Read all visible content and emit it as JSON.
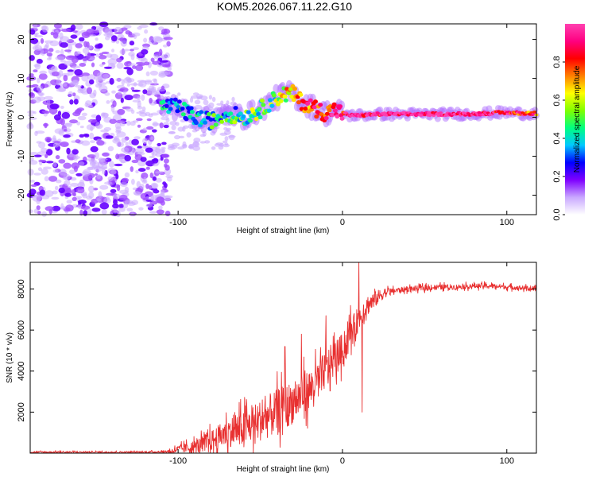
{
  "title": "KOM5.2026.067.11.22.G10",
  "chart_data": [
    {
      "type": "heatmap",
      "xlabel": "Height of straight line (km)",
      "ylabel": "Frequency (Hz)",
      "xlim": [
        -190,
        118
      ],
      "ylim": [
        -25,
        24
      ],
      "xticks": [
        -100,
        0,
        100
      ],
      "xtick_labels": [
        "-100",
        "0",
        "100"
      ],
      "yticks": [
        -20,
        -10,
        0,
        10,
        20
      ],
      "ytick_labels": [
        "-20",
        "-10",
        "0",
        "10",
        "20"
      ],
      "colorbar": {
        "label": "Normalized spectral amplitude",
        "range": [
          0,
          1
        ],
        "ticks": [
          0,
          0.2,
          0.4,
          0.6,
          0.8
        ],
        "tick_labels": [
          "0.0",
          "0.2",
          "0.4",
          "0.6",
          "0.8"
        ],
        "colors": [
          "#ffffff",
          "#c9a8ff",
          "#7f00ff",
          "#0000ff",
          "#00c8ff",
          "#00ff80",
          "#80ff00",
          "#ffff00",
          "#ff8000",
          "#ff0000",
          "#ff0080",
          "#ff40b0"
        ]
      },
      "noise_region_x": [
        -190,
        -105
      ],
      "signal_ridge": {
        "x": [
          -110,
          -100,
          -90,
          -80,
          -70,
          -60,
          -50,
          -40,
          -35,
          -30,
          -25,
          -20,
          -15,
          -10,
          -5,
          0,
          5,
          10,
          20,
          30,
          40,
          60,
          80,
          100,
          110,
          118
        ],
        "freq": [
          3,
          2.5,
          0,
          -1,
          1,
          0,
          2,
          5,
          6,
          6,
          4,
          3,
          2,
          1,
          2,
          1,
          0.5,
          0.5,
          0.8,
          0.8,
          0.8,
          0.8,
          0.9,
          1.2,
          1.0,
          1.0
        ],
        "amplitude": [
          0.3,
          0.35,
          0.35,
          0.4,
          0.4,
          0.45,
          0.5,
          0.5,
          0.6,
          0.7,
          0.75,
          0.8,
          0.85,
          0.85,
          0.9,
          0.9,
          0.95,
          0.95,
          0.95,
          1.0,
          1.0,
          1.0,
          1.0,
          0.9,
          0.85,
          0.8
        ]
      }
    },
    {
      "type": "line",
      "xlabel": "Height of straight line (km)",
      "ylabel": "SNR (10 * v/v)",
      "xlim": [
        -190,
        118
      ],
      "ylim": [
        0,
        9300
      ],
      "xticks": [
        -100,
        0,
        100
      ],
      "xtick_labels": [
        "-100",
        "0",
        "100"
      ],
      "yticks": [
        2000,
        4000,
        6000,
        8000
      ],
      "ytick_labels": [
        "2000",
        "4000",
        "6000",
        "8000"
      ],
      "color": "#e83030",
      "trend": {
        "x": [
          -190,
          -120,
          -105,
          -100,
          -90,
          -80,
          -70,
          -60,
          -50,
          -40,
          -30,
          -20,
          -15,
          -10,
          -5,
          0,
          5,
          10,
          15,
          20,
          25,
          30,
          40,
          50,
          60,
          70,
          80,
          90,
          100,
          110,
          118
        ],
        "y": [
          50,
          50,
          80,
          200,
          300,
          600,
          1000,
          1200,
          1600,
          2000,
          2500,
          3100,
          3500,
          4100,
          4600,
          5000,
          5800,
          6600,
          7200,
          7500,
          7800,
          7900,
          8000,
          8050,
          8100,
          8100,
          8150,
          8150,
          8100,
          8050,
          8000
        ]
      },
      "spikes": {
        "x": [
          -35,
          -25,
          -10,
          5,
          10,
          12
        ],
        "y": [
          5200,
          5800,
          6700,
          7200,
          9300,
          2000
        ]
      },
      "noise_amplitude": {
        "x": [
          -190,
          -110,
          -100,
          -80,
          -60,
          -40,
          -20,
          0,
          20,
          30,
          118
        ],
        "y": [
          80,
          80,
          300,
          900,
          1600,
          2000,
          1800,
          1500,
          700,
          250,
          200
        ]
      }
    }
  ]
}
